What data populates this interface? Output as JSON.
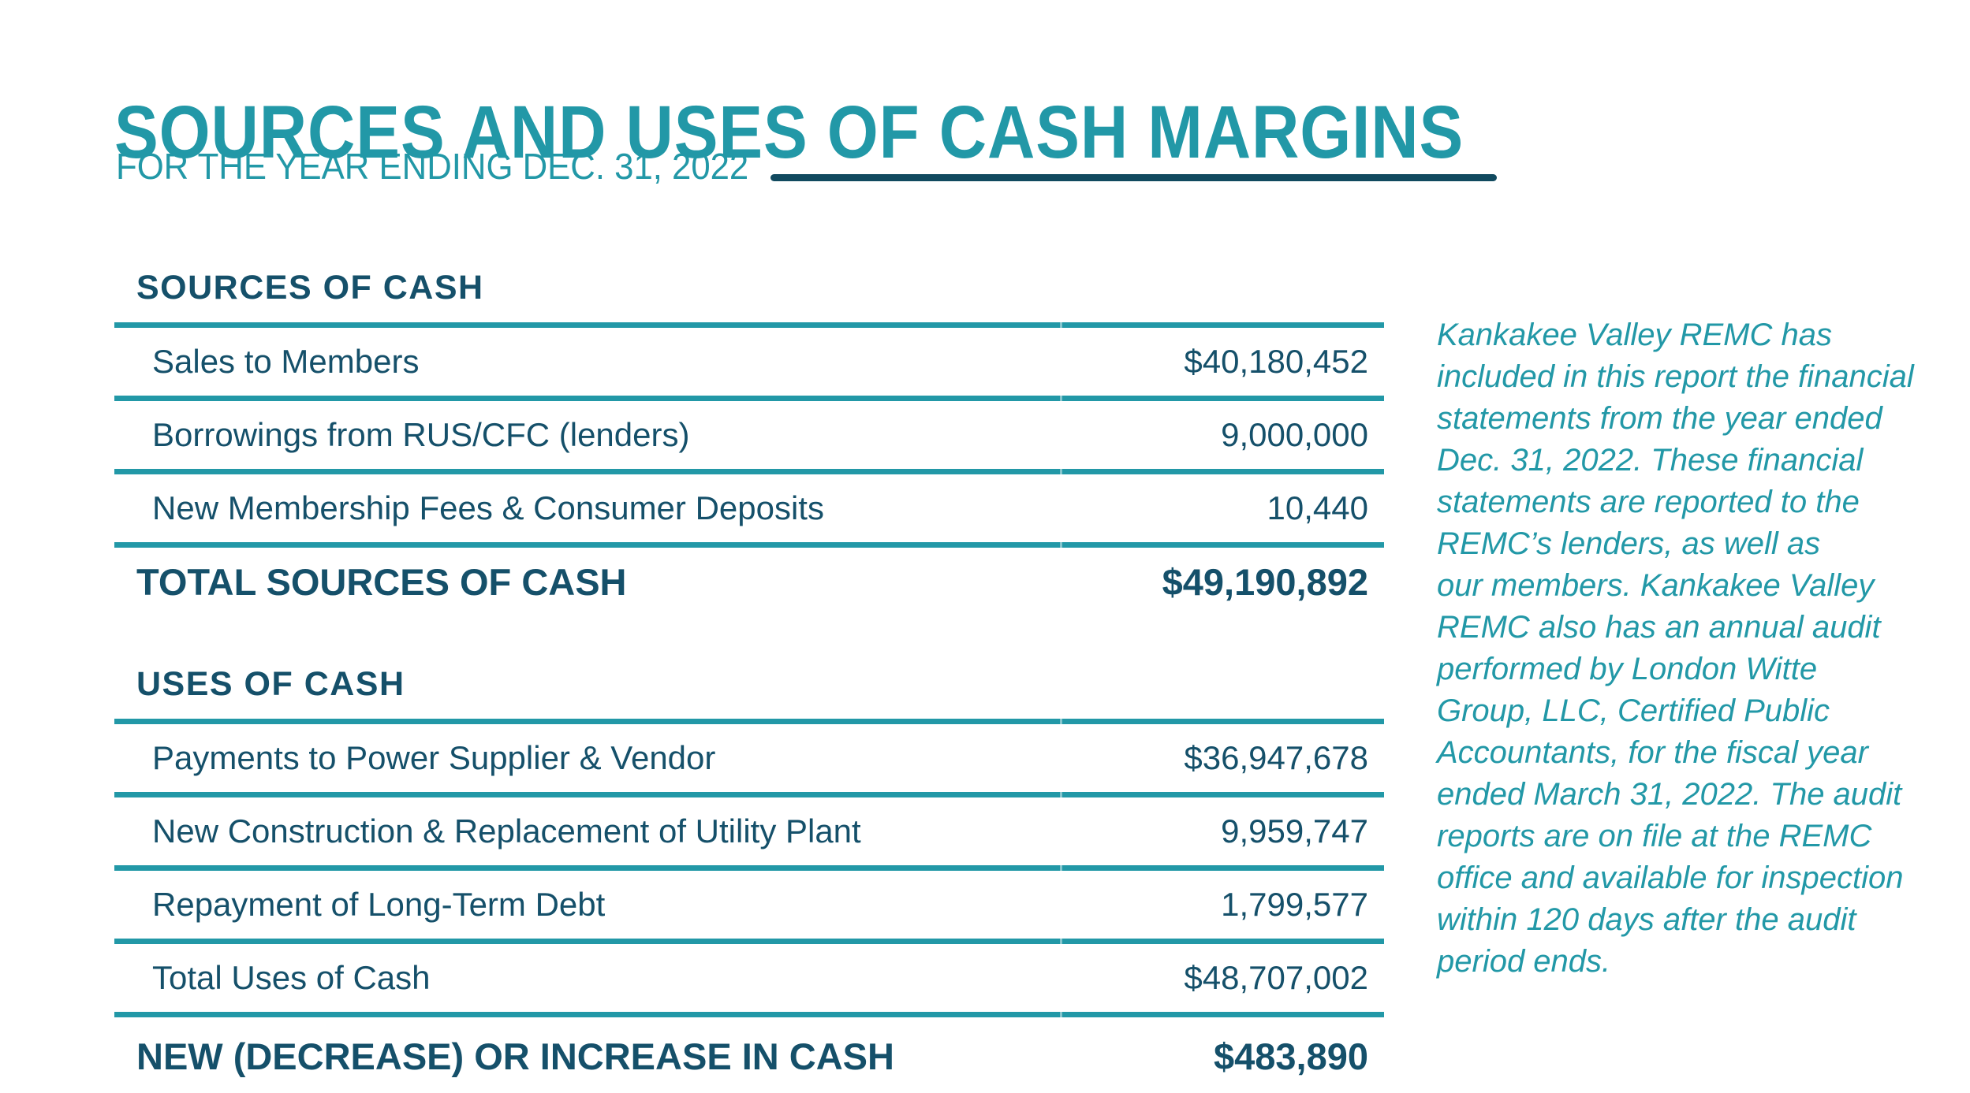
{
  "page": {
    "title": "SOURCES AND USES OF CASH MARGINS",
    "subtitle": "FOR THE YEAR ENDING DEC. 31, 2022"
  },
  "colors": {
    "accent_teal": "#2298a7",
    "dark_navy": "#15506a",
    "divider_navy": "#114a5f"
  },
  "table": {
    "sources": {
      "header": "SOURCES OF CASH",
      "rows": [
        {
          "label": "Sales to Members",
          "value": "$40,180,452"
        },
        {
          "label": "Borrowings from RUS/CFC (lenders)",
          "value": "9,000,000"
        },
        {
          "label": "New Membership Fees & Consumer Deposits",
          "value": "10,440"
        }
      ],
      "total": {
        "label": "TOTAL SOURCES OF CASH",
        "value": "$49,190,892"
      }
    },
    "uses": {
      "header": "USES OF CASH",
      "rows": [
        {
          "label": "Payments to Power Supplier & Vendor",
          "value": "$36,947,678"
        },
        {
          "label": "New Construction & Replacement of Utility Plant",
          "value": "9,959,747"
        },
        {
          "label": "Repayment of Long-Term Debt",
          "value": "1,799,577"
        },
        {
          "label": "Total Uses of Cash",
          "value": "$48,707,002"
        }
      ],
      "total": {
        "label": "NEW (DECREASE) OR INCREASE IN CASH",
        "value": "$483,890"
      }
    }
  },
  "audit_note": {
    "text": "Kankakee Valley REMC has\nincluded in this report the financial\nstatements from the year ended\nDec. 31, 2022. These financial\nstatements are reported to the\nREMC’s lenders, as well as\nour members. Kankakee Valley\nREMC also has an annual audit\nperformed by London Witte\nGroup, LLC, Certified Public\nAccountants, for the fiscal year\nended March 31, 2022. The audit\nreports are on file at the REMC\noffice and available for inspection\nwithin 120 days after the audit\nperiod ends."
  }
}
